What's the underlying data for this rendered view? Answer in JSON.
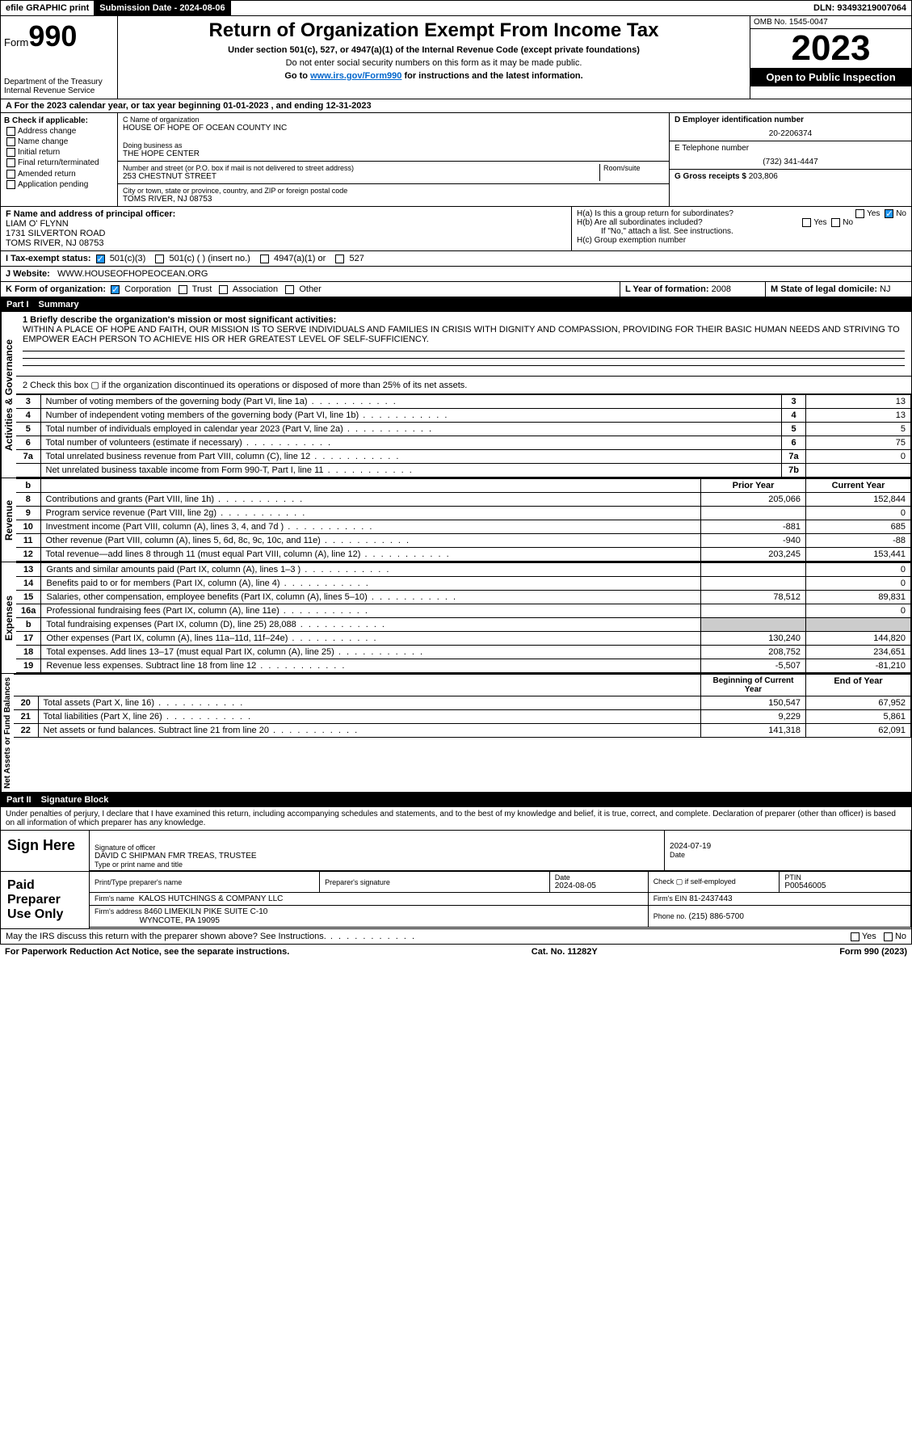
{
  "topbar": {
    "efile": "efile GRAPHIC print",
    "submission_label": "Submission Date - 2024-08-06",
    "dln": "DLN: 93493219007064"
  },
  "header": {
    "form_prefix": "Form",
    "form_number": "990",
    "dept": "Department of the Treasury",
    "irs": "Internal Revenue Service",
    "title": "Return of Organization Exempt From Income Tax",
    "subtitle1": "Under section 501(c), 527, or 4947(a)(1) of the Internal Revenue Code (except private foundations)",
    "subtitle2": "Do not enter social security numbers on this form as it may be made public.",
    "subtitle3_pre": "Go to ",
    "subtitle3_link": "www.irs.gov/Form990",
    "subtitle3_post": " for instructions and the latest information.",
    "omb": "OMB No. 1545-0047",
    "year": "2023",
    "open": "Open to Public Inspection"
  },
  "section_a": "A For the 2023 calendar year, or tax year beginning 01-01-2023   , and ending 12-31-2023",
  "section_b": {
    "title": "B Check if applicable:",
    "opts": [
      "Address change",
      "Name change",
      "Initial return",
      "Final return/terminated",
      "Amended return",
      "Application pending"
    ]
  },
  "section_c": {
    "name_label": "C Name of organization",
    "name": "HOUSE OF HOPE OF OCEAN COUNTY INC",
    "dba_label": "Doing business as",
    "dba": "THE HOPE CENTER",
    "street_label": "Number and street (or P.O. box if mail is not delivered to street address)",
    "room_label": "Room/suite",
    "street": "253 CHESTNUT STREET",
    "city_label": "City or town, state or province, country, and ZIP or foreign postal code",
    "city": "TOMS RIVER, NJ  08753"
  },
  "section_d": {
    "label": "D Employer identification number",
    "value": "20-2206374"
  },
  "section_e": {
    "label": "E Telephone number",
    "value": "(732) 341-4447"
  },
  "section_g": {
    "label": "G Gross receipts $",
    "value": "203,806"
  },
  "section_f": {
    "label": "F Name and address of principal officer:",
    "name": "LIAM O' FLYNN",
    "addr1": "1731 SILVERTON ROAD",
    "addr2": "TOMS RIVER, NJ  08753"
  },
  "section_h": {
    "ha": "H(a)  Is this a group return for subordinates?",
    "hb": "H(b)  Are all subordinates included?",
    "hb_note": "If \"No,\" attach a list. See instructions.",
    "hc": "H(c)  Group exemption number",
    "yes": "Yes",
    "no": "No"
  },
  "section_i": {
    "label": "I    Tax-exempt status:",
    "opts": [
      "501(c)(3)",
      "501(c) (  ) (insert no.)",
      "4947(a)(1) or",
      "527"
    ]
  },
  "section_j": {
    "label": "J    Website:",
    "value": "WWW.HOUSEOFHOPEOCEAN.ORG"
  },
  "section_k": {
    "label": "K Form of organization:",
    "opts": [
      "Corporation",
      "Trust",
      "Association",
      "Other"
    ]
  },
  "section_l": {
    "label": "L Year of formation:",
    "value": "2008"
  },
  "section_m": {
    "label": "M State of legal domicile:",
    "value": "NJ"
  },
  "part1": {
    "label": "Part I",
    "title": "Summary"
  },
  "governance": {
    "label": "Activities & Governance",
    "line1_label": "1   Briefly describe the organization's mission or most significant activities:",
    "mission": "WITHIN A PLACE OF HOPE AND FAITH, OUR MISSION IS TO SERVE INDIVIDUALS AND FAMILIES IN CRISIS WITH DIGNITY AND COMPASSION, PROVIDING FOR THEIR BASIC HUMAN NEEDS AND STRIVING TO EMPOWER EACH PERSON TO ACHIEVE HIS OR HER GREATEST LEVEL OF SELF-SUFFICIENCY.",
    "line2": "2   Check this box  ▢  if the organization discontinued its operations or disposed of more than 25% of its net assets.",
    "rows": [
      {
        "n": "3",
        "t": "Number of voting members of the governing body (Part VI, line 1a)",
        "box": "3",
        "v": "13"
      },
      {
        "n": "4",
        "t": "Number of independent voting members of the governing body (Part VI, line 1b)",
        "box": "4",
        "v": "13"
      },
      {
        "n": "5",
        "t": "Total number of individuals employed in calendar year 2023 (Part V, line 2a)",
        "box": "5",
        "v": "5"
      },
      {
        "n": "6",
        "t": "Total number of volunteers (estimate if necessary)",
        "box": "6",
        "v": "75"
      },
      {
        "n": "7a",
        "t": "Total unrelated business revenue from Part VIII, column (C), line 12",
        "box": "7a",
        "v": "0"
      },
      {
        "n": "",
        "t": "Net unrelated business taxable income from Form 990-T, Part I, line 11",
        "box": "7b",
        "v": ""
      }
    ]
  },
  "revenue": {
    "label": "Revenue",
    "head_b": "b",
    "head_prior": "Prior Year",
    "head_curr": "Current Year",
    "rows": [
      {
        "n": "8",
        "t": "Contributions and grants (Part VIII, line 1h)",
        "p": "205,066",
        "c": "152,844"
      },
      {
        "n": "9",
        "t": "Program service revenue (Part VIII, line 2g)",
        "p": "",
        "c": "0"
      },
      {
        "n": "10",
        "t": "Investment income (Part VIII, column (A), lines 3, 4, and 7d )",
        "p": "-881",
        "c": "685"
      },
      {
        "n": "11",
        "t": "Other revenue (Part VIII, column (A), lines 5, 6d, 8c, 9c, 10c, and 11e)",
        "p": "-940",
        "c": "-88"
      },
      {
        "n": "12",
        "t": "Total revenue—add lines 8 through 11 (must equal Part VIII, column (A), line 12)",
        "p": "203,245",
        "c": "153,441"
      }
    ]
  },
  "expenses": {
    "label": "Expenses",
    "rows": [
      {
        "n": "13",
        "t": "Grants and similar amounts paid (Part IX, column (A), lines 1–3 )",
        "p": "",
        "c": "0"
      },
      {
        "n": "14",
        "t": "Benefits paid to or for members (Part IX, column (A), line 4)",
        "p": "",
        "c": "0"
      },
      {
        "n": "15",
        "t": "Salaries, other compensation, employee benefits (Part IX, column (A), lines 5–10)",
        "p": "78,512",
        "c": "89,831"
      },
      {
        "n": "16a",
        "t": "Professional fundraising fees (Part IX, column (A), line 11e)",
        "p": "",
        "c": "0"
      },
      {
        "n": "b",
        "t": "Total fundraising expenses (Part IX, column (D), line 25) 28,088",
        "p": "SHADE",
        "c": "SHADE"
      },
      {
        "n": "17",
        "t": "Other expenses (Part IX, column (A), lines 11a–11d, 11f–24e)",
        "p": "130,240",
        "c": "144,820"
      },
      {
        "n": "18",
        "t": "Total expenses. Add lines 13–17 (must equal Part IX, column (A), line 25)",
        "p": "208,752",
        "c": "234,651"
      },
      {
        "n": "19",
        "t": "Revenue less expenses. Subtract line 18 from line 12",
        "p": "-5,507",
        "c": "-81,210"
      }
    ]
  },
  "netassets": {
    "label": "Net Assets or Fund Balances",
    "head_begin": "Beginning of Current Year",
    "head_end": "End of Year",
    "rows": [
      {
        "n": "20",
        "t": "Total assets (Part X, line 16)",
        "p": "150,547",
        "c": "67,952"
      },
      {
        "n": "21",
        "t": "Total liabilities (Part X, line 26)",
        "p": "9,229",
        "c": "5,861"
      },
      {
        "n": "22",
        "t": "Net assets or fund balances. Subtract line 21 from line 20",
        "p": "141,318",
        "c": "62,091"
      }
    ]
  },
  "part2": {
    "label": "Part II",
    "title": "Signature Block"
  },
  "perjury": "Under penalties of perjury, I declare that I have examined this return, including accompanying schedules and statements, and to the best of my knowledge and belief, it is true, correct, and complete. Declaration of preparer (other than officer) is based on all information of which preparer has any knowledge.",
  "sign": {
    "label": "Sign Here",
    "sig_officer": "Signature of officer",
    "officer": "DAVID C SHIPMAN FMR TREAS, TRUSTEE",
    "type_label": "Type or print name and title",
    "date_label": "Date",
    "date": "2024-07-19"
  },
  "preparer": {
    "label": "Paid Preparer Use Only",
    "print_label": "Print/Type preparer's name",
    "sig_label": "Preparer's signature",
    "date_label": "Date",
    "date": "2024-08-05",
    "check_label": "Check ▢ if self-employed",
    "ptin_label": "PTIN",
    "ptin": "P00546005",
    "firm_name_label": "Firm's name",
    "firm_name": "KALOS HUTCHINGS & COMPANY LLC",
    "firm_ein_label": "Firm's EIN",
    "firm_ein": "81-2437443",
    "firm_addr_label": "Firm's address",
    "firm_addr1": "8460 LIMEKILN PIKE SUITE C-10",
    "firm_addr2": "WYNCOTE, PA  19095",
    "phone_label": "Phone no.",
    "phone": "(215) 886-5700"
  },
  "discuss": "May the IRS discuss this return with the preparer shown above? See Instructions.",
  "footer": {
    "left": "For Paperwork Reduction Act Notice, see the separate instructions.",
    "mid": "Cat. No. 11282Y",
    "right": "Form 990 (2023)"
  }
}
